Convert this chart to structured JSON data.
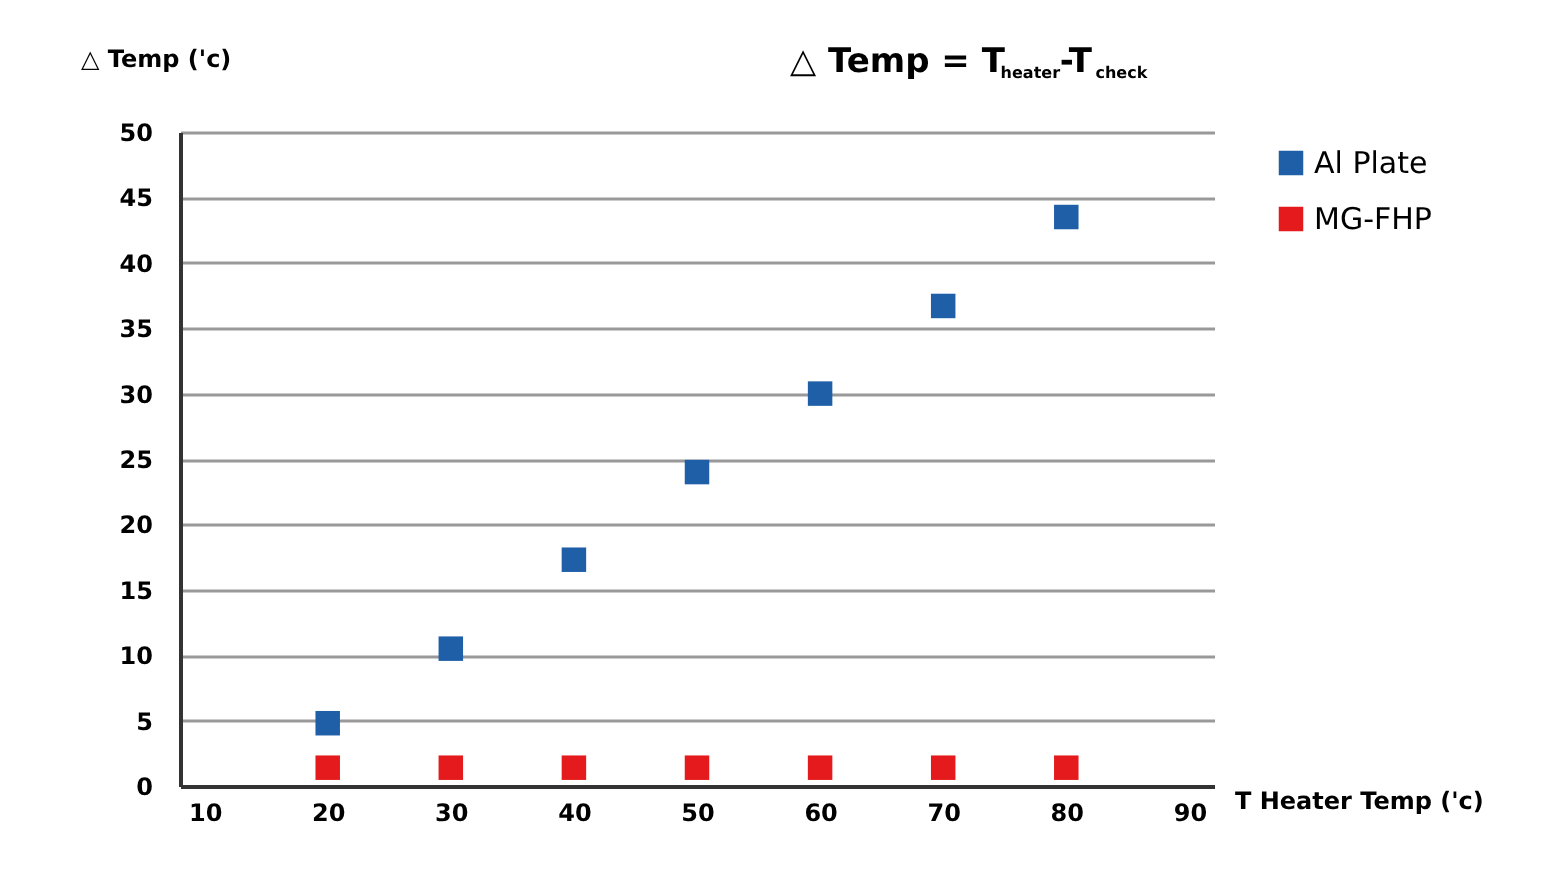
{
  "chart_data": {
    "type": "scatter",
    "title": "△ Temp = T$_{heater}$-T$_{check}$",
    "xlabel": "T Heater Temp ('c)",
    "ylabel": "△ Temp ('c)",
    "x": [
      20,
      30,
      40,
      50,
      60,
      70,
      80
    ],
    "series": [
      {
        "name": "Al Plate",
        "color": "#1f5fa8",
        "values": [
          4.8,
          10.5,
          17.3,
          24.0,
          30.0,
          36.7,
          43.5
        ]
      },
      {
        "name": "MG-FHP",
        "color": "#e41a1c",
        "values": [
          1.4,
          1.4,
          1.4,
          1.4,
          1.4,
          1.4,
          1.4
        ]
      }
    ],
    "xlim": [
      8,
      92
    ],
    "xticks": [
      10,
      20,
      30,
      40,
      50,
      60,
      70,
      80,
      90
    ],
    "ylim": [
      0,
      50
    ],
    "yticks": [
      0,
      5,
      10,
      15,
      20,
      25,
      30,
      35,
      40,
      45,
      50
    ],
    "grid": "y",
    "legend": "top right",
    "marker": "square"
  }
}
